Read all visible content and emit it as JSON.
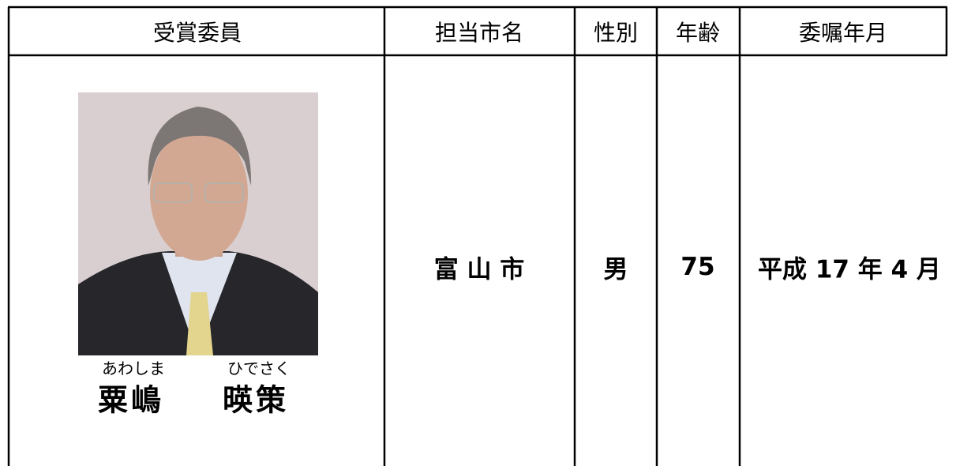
{
  "table": {
    "header": [
      "受賞委員",
      "担当市名",
      "性別",
      "年齢",
      "委嘱年月"
    ],
    "rows": [
      {
        "name": {
          "family_reading": "あわしま",
          "given_reading": "ひでさく",
          "family": "粟嶋",
          "given": "暎策"
        },
        "city": "富 山 市",
        "sex": "男",
        "age": "75",
        "appointed": "平成 17 年 4 月"
      }
    ]
  }
}
